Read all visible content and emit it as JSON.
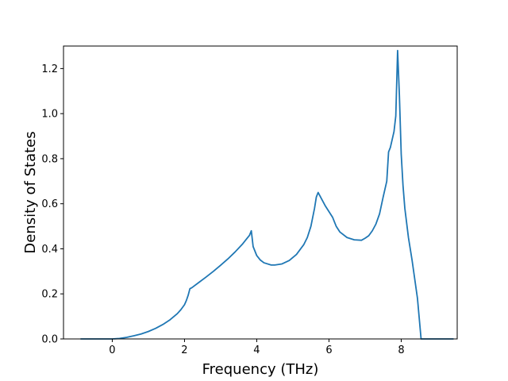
{
  "chart_data": {
    "type": "line",
    "title": "",
    "xlabel": "Frequency (THz)",
    "ylabel": "Density of States",
    "xlim": [
      -1.35,
      9.55
    ],
    "ylim": [
      0.0,
      1.3
    ],
    "xticks": [
      0,
      2,
      4,
      6,
      8
    ],
    "yticks": [
      0.0,
      0.2,
      0.4,
      0.6,
      0.8,
      1.0,
      1.2
    ],
    "grid": false,
    "legend": "none",
    "series": [
      {
        "color": "#1f77b4",
        "x": [
          -0.88,
          -0.5,
          -0.2,
          0.0,
          0.2,
          0.4,
          0.6,
          0.8,
          1.0,
          1.2,
          1.4,
          1.6,
          1.8,
          1.9,
          2.0,
          2.05,
          2.1,
          2.15,
          2.2,
          2.4,
          2.6,
          2.8,
          3.0,
          3.2,
          3.4,
          3.6,
          3.7,
          3.8,
          3.85,
          3.9,
          4.0,
          4.1,
          4.2,
          4.4,
          4.5,
          4.7,
          4.9,
          5.1,
          5.3,
          5.4,
          5.5,
          5.6,
          5.65,
          5.7,
          5.8,
          5.9,
          6.0,
          6.1,
          6.15,
          6.2,
          6.3,
          6.5,
          6.7,
          6.9,
          7.0,
          7.1,
          7.2,
          7.3,
          7.4,
          7.5,
          7.6,
          7.65,
          7.7,
          7.8,
          7.85,
          7.9,
          7.95,
          8.0,
          8.05,
          8.1,
          8.2,
          8.3,
          8.45,
          8.55,
          8.6,
          8.7,
          9.45
        ],
        "values": [
          0.0,
          0.0,
          0.0,
          0.0,
          0.002,
          0.007,
          0.014,
          0.022,
          0.033,
          0.047,
          0.064,
          0.085,
          0.112,
          0.13,
          0.152,
          0.17,
          0.193,
          0.223,
          0.227,
          0.251,
          0.275,
          0.3,
          0.327,
          0.355,
          0.386,
          0.42,
          0.44,
          0.46,
          0.48,
          0.41,
          0.37,
          0.35,
          0.338,
          0.328,
          0.328,
          0.333,
          0.348,
          0.375,
          0.418,
          0.45,
          0.5,
          0.58,
          0.63,
          0.65,
          0.62,
          0.59,
          0.565,
          0.54,
          0.52,
          0.5,
          0.475,
          0.45,
          0.44,
          0.438,
          0.447,
          0.458,
          0.48,
          0.51,
          0.555,
          0.63,
          0.7,
          0.83,
          0.85,
          0.92,
          0.99,
          1.28,
          1.08,
          0.82,
          0.68,
          0.58,
          0.45,
          0.35,
          0.18,
          0.0,
          0.0,
          0.0,
          0.0
        ]
      }
    ]
  }
}
